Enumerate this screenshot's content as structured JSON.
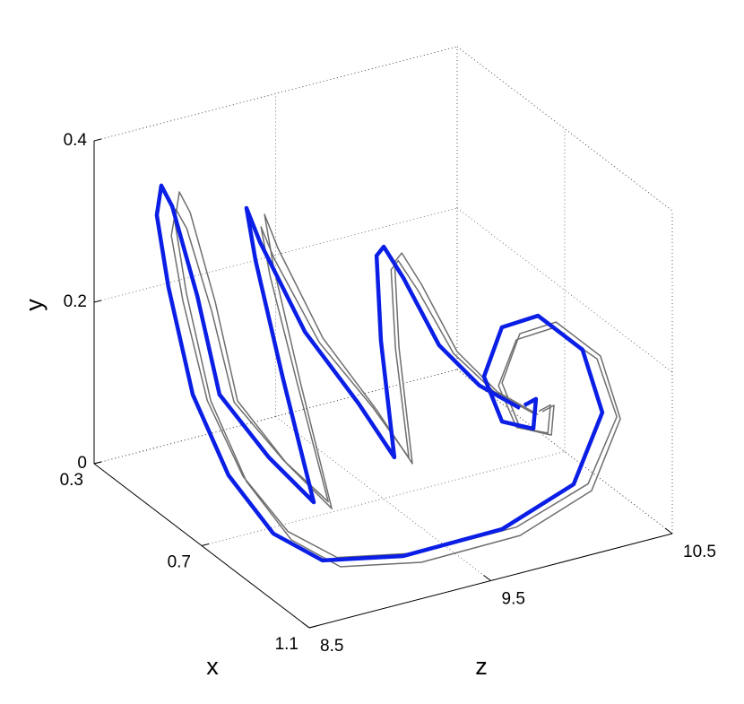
{
  "chart_data": {
    "type": "line3d",
    "xlabel": "x",
    "ylabel": "y",
    "zlabel": "z",
    "xlim": [
      0.3,
      1.1
    ],
    "xticks": [
      0.3,
      0.7,
      1.1
    ],
    "ylim": [
      0,
      0.4
    ],
    "yticks": [
      0,
      0.2,
      0.4
    ],
    "zlim": [
      8.5,
      10.5
    ],
    "zticks": [
      8.5,
      9.5,
      10.5
    ],
    "grid": true,
    "series": [
      {
        "color": "#6e6e6e",
        "x": [
          0.846,
          0.834,
          0.881,
          0.884,
          0.821,
          0.776,
          0.768,
          0.816,
          0.887,
          0.945,
          0.982,
          0.957,
          0.897,
          0.782,
          0.645,
          0.494,
          0.373,
          0.336,
          0.35,
          0.377,
          0.492,
          0.578,
          0.677,
          0.765,
          0.514,
          0.416,
          0.336,
          0.414,
          0.548,
          0.625,
          0.707,
          0.535,
          0.456,
          0.43,
          0.504,
          0.635,
          0.732,
          0.852
        ],
        "y": [
          0.108,
          0.108,
          0.09,
          0.108,
          0.144,
          0.18,
          0.18,
          0.144,
          0.09,
          0.036,
          0.018,
          0.009,
          0.009,
          0.018,
          0.054,
          0.108,
          0.198,
          0.27,
          0.306,
          0.288,
          0.216,
          0.126,
          0.072,
          0.036,
          0.108,
          0.216,
          0.252,
          0.234,
          0.162,
          0.09,
          0.045,
          0.126,
          0.198,
          0.198,
          0.18,
          0.135,
          0.108,
          0.108
        ],
        "z": [
          10.141,
          10.223,
          10.139,
          9.962,
          9.956,
          10.121,
          10.332,
          10.506,
          10.51,
          10.266,
          9.817,
          9.31,
          8.954,
          8.853,
          8.809,
          8.836,
          8.881,
          8.872,
          8.876,
          8.896,
          8.864,
          8.859,
          8.984,
          9.101,
          9.301,
          9.297,
          9.366,
          9.325,
          9.374,
          9.556,
          9.631,
          9.812,
          9.905,
          9.983,
          9.982,
          9.984,
          10.063,
          10.108
        ]
      },
      {
        "color": "#6e6e6e",
        "x": [
          0.886,
          0.874,
          0.921,
          0.924,
          0.861,
          0.816,
          0.808,
          0.856,
          0.927,
          0.985,
          1.022,
          0.997,
          0.937,
          0.822,
          0.685,
          0.534,
          0.413,
          0.376,
          0.39,
          0.417,
          0.532,
          0.618,
          0.717,
          0.805,
          0.554,
          0.456,
          0.376,
          0.454,
          0.588,
          0.665,
          0.747,
          0.575,
          0.496,
          0.47,
          0.544,
          0.675,
          0.772,
          0.892
        ],
        "y": [
          0.12,
          0.12,
          0.1,
          0.12,
          0.16,
          0.2,
          0.2,
          0.16,
          0.1,
          0.04,
          0.02,
          0.01,
          0.01,
          0.02,
          0.06,
          0.12,
          0.22,
          0.3,
          0.34,
          0.32,
          0.24,
          0.14,
          0.08,
          0.04,
          0.12,
          0.24,
          0.28,
          0.26,
          0.18,
          0.1,
          0.05,
          0.14,
          0.22,
          0.22,
          0.2,
          0.15,
          0.12,
          0.12
        ],
        "z": [
          10.101,
          10.183,
          10.099,
          9.922,
          9.916,
          10.081,
          10.292,
          10.466,
          10.47,
          10.226,
          9.777,
          9.27,
          8.914,
          8.813,
          8.769,
          8.796,
          8.841,
          8.832,
          8.836,
          8.856,
          8.824,
          8.819,
          8.944,
          9.061,
          9.261,
          9.257,
          9.326,
          9.285,
          9.334,
          9.516,
          9.591,
          9.772,
          9.865,
          9.943,
          9.942,
          9.944,
          10.023,
          10.068
        ]
      },
      {
        "color": "#0a1ee6",
        "x": [
          0.846,
          0.834,
          0.881,
          0.884,
          0.821,
          0.776,
          0.768,
          0.816,
          0.887,
          0.945,
          0.982,
          0.957,
          0.897,
          0.782,
          0.645,
          0.494,
          0.373,
          0.336,
          0.35,
          0.377,
          0.492,
          0.578,
          0.677,
          0.765,
          0.514,
          0.416,
          0.336,
          0.414,
          0.548,
          0.625,
          0.707,
          0.535,
          0.456,
          0.43,
          0.504,
          0.635,
          0.732,
          0.852
        ],
        "y": [
          0.12,
          0.12,
          0.1,
          0.12,
          0.16,
          0.2,
          0.2,
          0.16,
          0.1,
          0.04,
          0.02,
          0.01,
          0.01,
          0.02,
          0.06,
          0.12,
          0.22,
          0.3,
          0.34,
          0.32,
          0.24,
          0.14,
          0.08,
          0.04,
          0.12,
          0.24,
          0.28,
          0.26,
          0.18,
          0.1,
          0.05,
          0.14,
          0.22,
          0.22,
          0.2,
          0.15,
          0.12,
          0.12
        ],
        "z": [
          10.061,
          10.143,
          10.059,
          9.882,
          9.876,
          10.041,
          10.252,
          10.426,
          10.43,
          10.186,
          9.737,
          9.23,
          8.874,
          8.773,
          8.729,
          8.756,
          8.801,
          8.792,
          8.796,
          8.816,
          8.784,
          8.779,
          8.904,
          9.021,
          9.221,
          9.217,
          9.286,
          9.245,
          9.294,
          9.476,
          9.551,
          9.732,
          9.825,
          9.903,
          9.902,
          9.904,
          9.983,
          10.028
        ]
      }
    ]
  }
}
